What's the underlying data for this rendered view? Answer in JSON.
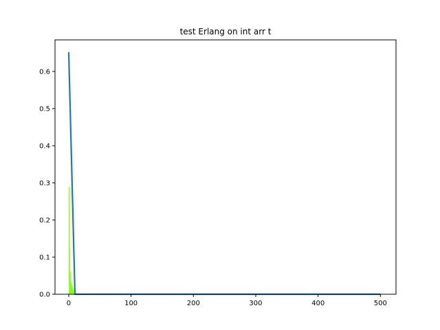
{
  "chart_data": {
    "type": "line",
    "title": "test Erlang on int arr t",
    "xlabel": "",
    "ylabel": "",
    "xlim": [
      -22,
      525
    ],
    "ylim": [
      0,
      0.685
    ],
    "x_ticks": [
      0,
      100,
      200,
      300,
      400,
      500
    ],
    "y_ticks": [
      0.0,
      0.1,
      0.2,
      0.3,
      0.4,
      0.5,
      0.6
    ],
    "x_tick_labels": [
      "0",
      "100",
      "200",
      "300",
      "400",
      "500"
    ],
    "y_tick_labels": [
      "0.0",
      "0.1",
      "0.2",
      "0.3",
      "0.4",
      "0.5",
      "0.6"
    ],
    "grid": false,
    "series": [
      {
        "kind": "histogram",
        "color": "#7fff00",
        "bars": [
          {
            "x": 0,
            "width": 1,
            "value": 0.29
          },
          {
            "x": 1,
            "width": 1,
            "value": 0.125
          },
          {
            "x": 2,
            "width": 1,
            "value": 0.062
          },
          {
            "x": 3,
            "width": 1,
            "value": 0.035
          },
          {
            "x": 4,
            "width": 1,
            "value": 0.03
          },
          {
            "x": 5,
            "width": 1,
            "value": 0.022
          },
          {
            "x": 6,
            "width": 1,
            "value": 0.018
          },
          {
            "x": 7,
            "width": 1,
            "value": 0.012
          },
          {
            "x": 8,
            "width": 1,
            "value": 0.006
          }
        ]
      },
      {
        "kind": "line",
        "color": "#1f77b4",
        "x": [
          0,
          10,
          500
        ],
        "y": [
          0.652,
          0.0,
          0.0
        ]
      }
    ]
  }
}
